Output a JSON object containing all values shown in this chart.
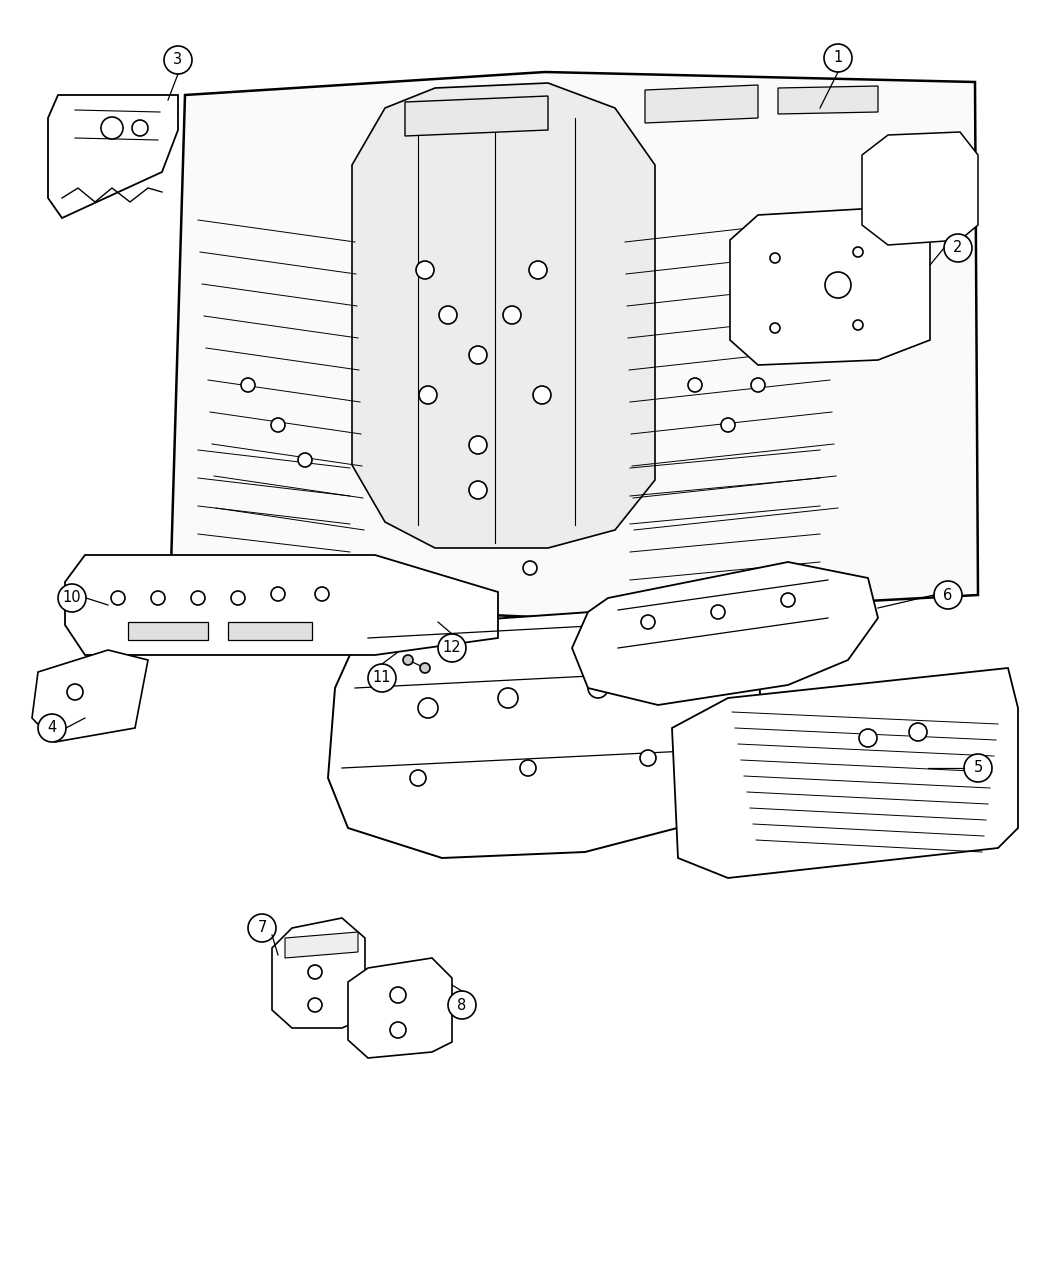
{
  "background_color": "#ffffff",
  "line_color": "#000000",
  "line_width": 1.2,
  "fig_width": 10.5,
  "fig_height": 12.75
}
